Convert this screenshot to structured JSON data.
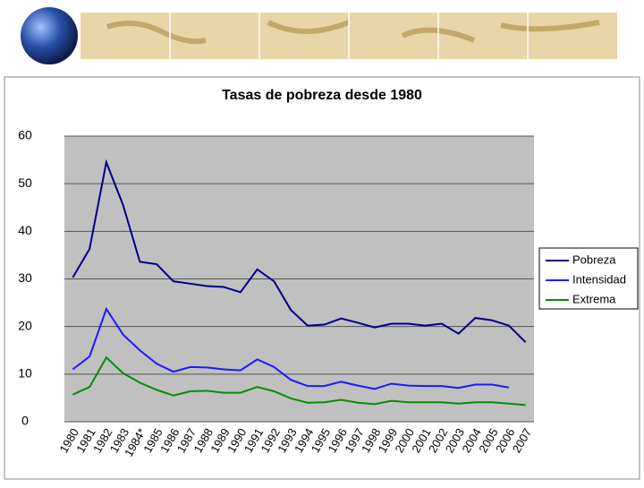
{
  "chart_data": {
    "type": "line",
    "title": "Tasas de pobreza desde 1980",
    "categories": [
      "1980",
      "1981",
      "1982",
      "1983",
      "1984*",
      "1985",
      "1986",
      "1987",
      "1988",
      "1989",
      "1990",
      "1991",
      "1992",
      "1993",
      "1994",
      "1995",
      "1996",
      "1997",
      "1998",
      "1999",
      "2000",
      "2001",
      "2002",
      "2003",
      "2004",
      "2005",
      "2006",
      "2007"
    ],
    "series": [
      {
        "name": "Pobreza",
        "color": "#000080",
        "values": [
          30.3,
          36.3,
          54.5,
          45.5,
          33.6,
          33.1,
          29.5,
          29.0,
          28.5,
          28.3,
          27.2,
          32.0,
          29.5,
          23.5,
          20.2,
          20.4,
          21.7,
          20.8,
          19.8,
          20.6,
          20.6,
          20.2,
          20.6,
          18.5,
          21.8,
          21.3,
          20.2,
          16.7
        ]
      },
      {
        "name": "Intensidad",
        "color": "#1a1aff",
        "values": [
          11.0,
          13.7,
          23.7,
          18.3,
          15.0,
          12.2,
          10.5,
          11.5,
          11.4,
          11.0,
          10.8,
          13.1,
          11.5,
          8.8,
          7.5,
          7.5,
          8.4,
          7.6,
          6.9,
          8.0,
          7.6,
          7.5,
          7.5,
          7.1,
          7.8,
          7.8,
          7.2,
          null
        ]
      },
      {
        "name": "Extrema",
        "color": "#0a8a0a",
        "values": [
          5.7,
          7.3,
          13.5,
          10.2,
          8.2,
          6.7,
          5.5,
          6.4,
          6.5,
          6.1,
          6.1,
          7.3,
          6.4,
          4.9,
          4.0,
          4.1,
          4.6,
          4.0,
          3.7,
          4.4,
          4.1,
          4.1,
          4.1,
          3.8,
          4.1,
          4.1,
          3.8,
          3.5
        ]
      }
    ],
    "ylim": [
      0,
      60
    ],
    "yticks": [
      0,
      10,
      20,
      30,
      40,
      50,
      60
    ],
    "grid": true,
    "legend": "right"
  }
}
